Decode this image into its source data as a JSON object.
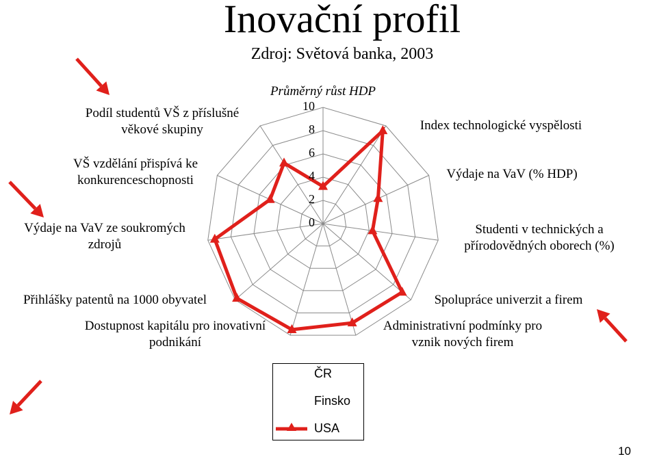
{
  "title": "Inovační profil",
  "subtitle": "Zdroj: Světová banka, 2003",
  "page_number": "10",
  "chart_data": {
    "type": "radar",
    "axes": [
      "Průměrný růst HDP",
      "Index technologické vyspělosti",
      "Výdaje na VaV (% HDP)",
      "Studenti v technických a přírodovědných oborech (%)",
      "Spolupráce univerzit a firem",
      "Administrativní podmínky pro vznik nových firem",
      "Dostupnost kapitálu pro inovativní podnikání",
      "Přihlášky patentů na 1000 obyvatel",
      "Výdaje na VaV ze soukromých zdrojů",
      "VŠ vzdělání přispívá ke konkurenceschopnosti",
      "Podíl studentů VŠ z příslušné věkové skupiny"
    ],
    "axis_label_lines": [
      [
        "Průměrný růst HDP"
      ],
      [
        "Index technologické vyspělosti"
      ],
      [
        "Výdaje na VaV (% HDP)"
      ],
      [
        "Studenti v technických a",
        "přírodovědných oborech (%)"
      ],
      [
        "Spolupráce univerzit a firem"
      ],
      [
        "Administrativní podmínky pro",
        "vznik nových firem"
      ],
      [
        "Dostupnost kapitálu pro inovativní",
        "podnikání"
      ],
      [
        "Přihlášky patentů na 1000 obyvatel"
      ],
      [
        "Výdaje na VaV ze soukromých",
        "zdrojů"
      ],
      [
        "VŠ vzdělání přispívá ke",
        "konkurenceschopnosti"
      ],
      [
        "Podíl studentů VŠ z příslušné",
        "věkové skupiny"
      ]
    ],
    "range": [
      0,
      10
    ],
    "ticks": [
      "0",
      "2",
      "4",
      "6",
      "8",
      "10"
    ],
    "grid": true,
    "legend_position": "bottom",
    "series": [
      {
        "name": "ČR",
        "values": null,
        "color": "#000000"
      },
      {
        "name": "Finsko",
        "values": null,
        "color": "#000000"
      },
      {
        "name": "USA",
        "values": [
          3.2,
          9.5,
          5.2,
          4.3,
          9.0,
          8.9,
          9.5,
          9.8,
          9.4,
          5.0,
          6.2
        ],
        "color": "#e0201b",
        "marker": "triangle"
      }
    ]
  },
  "arrows_color": "#e0201b"
}
